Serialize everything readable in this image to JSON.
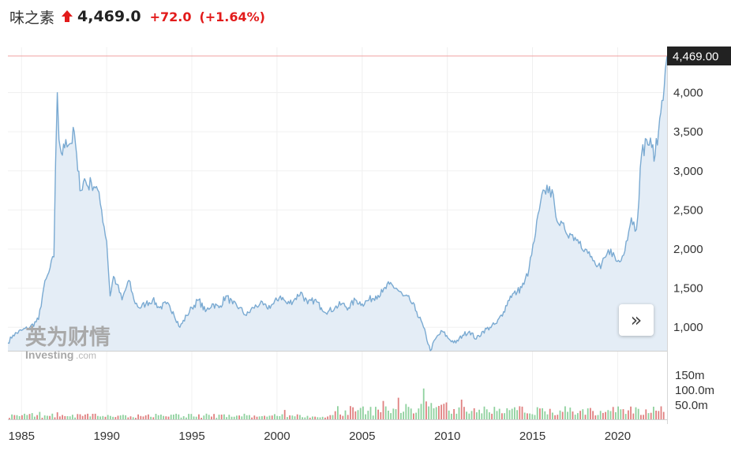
{
  "header": {
    "name": "味之素",
    "price": "4,469.0",
    "change": "+72.0",
    "change_pct": "(+1.64%)",
    "direction_icon": "up-arrow-icon",
    "up_color": "#e21b1b"
  },
  "watermark": {
    "cn": "英为财情",
    "en": "Investing",
    "suffix": ".com"
  },
  "nav": {
    "icon": "double-chevron-right-icon",
    "label": "»"
  },
  "chart_data": {
    "type": "area",
    "last_value_label": "4,469.00",
    "last_value": 4469,
    "line_color": "#7aaad2",
    "fill_color": "#e4edf6",
    "ylim": [
      700,
      4580
    ],
    "yticks": [
      {
        "value": 1000,
        "label": "1,000"
      },
      {
        "value": 1500,
        "label": "1,500"
      },
      {
        "value": 2000,
        "label": "2,000"
      },
      {
        "value": 2500,
        "label": "2,500"
      },
      {
        "value": 3000,
        "label": "3,000"
      },
      {
        "value": 3500,
        "label": "3,500"
      },
      {
        "value": 4000,
        "label": "4,000"
      }
    ],
    "xlim": [
      1984.2,
      2022.9
    ],
    "xticks": [
      {
        "value": 1985,
        "label": "1985"
      },
      {
        "value": 1990,
        "label": "1990"
      },
      {
        "value": 1995,
        "label": "1995"
      },
      {
        "value": 2000,
        "label": "2000"
      },
      {
        "value": 2005,
        "label": "2005"
      },
      {
        "value": 2010,
        "label": "2010"
      },
      {
        "value": 2015,
        "label": "2015"
      },
      {
        "value": 2020,
        "label": "2020"
      }
    ],
    "x": [
      1984.2,
      1984.5,
      1985.0,
      1985.5,
      1986.0,
      1986.3,
      1986.6,
      1986.9,
      1987.0,
      1987.1,
      1987.2,
      1987.4,
      1987.6,
      1987.9,
      1988.1,
      1988.3,
      1988.5,
      1988.7,
      1988.9,
      1989.1,
      1989.4,
      1989.7,
      1990.0,
      1990.2,
      1990.4,
      1990.6,
      1990.9,
      1991.3,
      1991.6,
      1991.9,
      1992.3,
      1992.7,
      1993.1,
      1993.5,
      1993.9,
      1994.3,
      1994.7,
      1995.0,
      1995.4,
      1995.8,
      1996.2,
      1996.6,
      1997.0,
      1997.4,
      1997.8,
      1998.2,
      1998.6,
      1999.0,
      1999.4,
      1999.8,
      2000.2,
      2000.6,
      2001.0,
      2001.4,
      2001.8,
      2002.2,
      2002.6,
      2003.0,
      2003.4,
      2003.8,
      2004.2,
      2004.6,
      2005.0,
      2005.4,
      2005.8,
      2006.2,
      2006.6,
      2007.0,
      2007.4,
      2007.8,
      2008.2,
      2008.6,
      2009.0,
      2009.3,
      2009.7,
      2010.1,
      2010.5,
      2010.9,
      2011.3,
      2011.7,
      2012.1,
      2012.5,
      2012.9,
      2013.3,
      2013.7,
      2014.1,
      2014.5,
      2014.8,
      2015.1,
      2015.4,
      2015.7,
      2016.0,
      2016.3,
      2016.6,
      2016.9,
      2017.2,
      2017.5,
      2017.8,
      2018.1,
      2018.4,
      2018.7,
      2019.0,
      2019.3,
      2019.6,
      2019.9,
      2020.2,
      2020.5,
      2020.8,
      2021.1,
      2021.4,
      2021.7,
      2022.0,
      2022.2,
      2022.4,
      2022.6,
      2022.8,
      2022.9
    ],
    "y": [
      800,
      900,
      960,
      1000,
      1100,
      1500,
      1700,
      1900,
      3100,
      4000,
      3400,
      3200,
      3400,
      3350,
      3500,
      3000,
      2750,
      2900,
      2800,
      2850,
      2800,
      2500,
      2100,
      1400,
      1650,
      1550,
      1350,
      1600,
      1350,
      1250,
      1300,
      1350,
      1250,
      1300,
      1200,
      1000,
      1150,
      1250,
      1350,
      1200,
      1300,
      1250,
      1400,
      1300,
      1250,
      1150,
      1250,
      1300,
      1250,
      1300,
      1400,
      1300,
      1350,
      1450,
      1300,
      1350,
      1250,
      1200,
      1250,
      1300,
      1250,
      1350,
      1300,
      1350,
      1400,
      1450,
      1550,
      1500,
      1400,
      1350,
      1200,
      1000,
      700,
      850,
      950,
      850,
      800,
      900,
      950,
      850,
      950,
      1000,
      1050,
      1200,
      1400,
      1450,
      1550,
      1750,
      2100,
      2500,
      2750,
      2800,
      2550,
      2300,
      2250,
      2200,
      2150,
      2100,
      2000,
      1900,
      1800,
      1750,
      1900,
      2000,
      1850,
      1850,
      2100,
      2400,
      2250,
      3200,
      3400,
      3300,
      3200,
      3500,
      3900,
      4300,
      4469
    ]
  }
}
